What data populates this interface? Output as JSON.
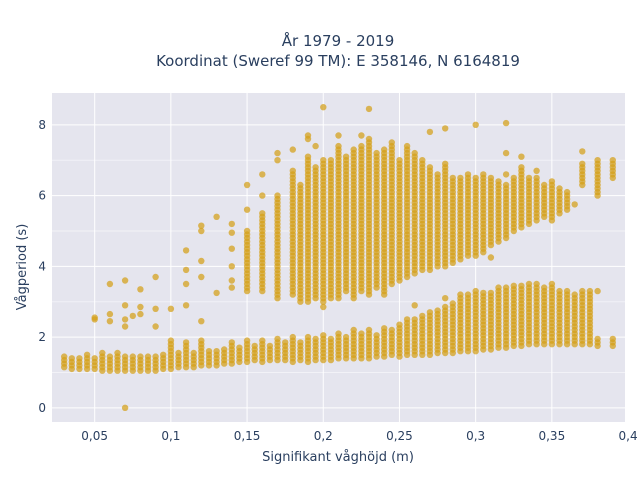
{
  "chart_data": {
    "type": "scatter",
    "title": "År 1979 - 2019",
    "subtitle": "Koordinat (Sweref 99 TM): E 358146, N 6164819",
    "xlabel": "Signifikant våghöjd (m)",
    "ylabel": "Vågperiod (s)",
    "xlim": [
      0.022,
      0.398
    ],
    "ylim": [
      -0.4,
      8.9
    ],
    "x_ticks": [
      0.05,
      0.1,
      0.15,
      0.2,
      0.25,
      0.3,
      0.35,
      0.4
    ],
    "x_tick_labels": [
      "0,05",
      "0,1",
      "0,15",
      "0,2",
      "0,25",
      "0,3",
      "0,35",
      "0,4"
    ],
    "y_ticks": [
      0,
      2,
      4,
      6,
      8
    ],
    "y_tick_labels": [
      "0",
      "2",
      "4",
      "6",
      "8"
    ],
    "grid": true,
    "legend": "none",
    "marker_color": "#D4A017",
    "background_color": "#E5E5EE",
    "columns": [
      {
        "x": 0.03,
        "low_band": [
          1.15,
          1.5
        ],
        "high_band": null,
        "outliers": []
      },
      {
        "x": 0.035,
        "low_band": [
          1.1,
          1.45
        ],
        "high_band": null,
        "outliers": []
      },
      {
        "x": 0.04,
        "low_band": [
          1.1,
          1.45
        ],
        "high_band": null,
        "outliers": []
      },
      {
        "x": 0.045,
        "low_band": [
          1.1,
          1.5
        ],
        "high_band": null,
        "outliers": []
      },
      {
        "x": 0.05,
        "low_band": [
          1.1,
          1.45
        ],
        "high_band": null,
        "outliers": [
          2.5,
          2.55
        ]
      },
      {
        "x": 0.055,
        "low_band": [
          1.05,
          1.55
        ],
        "high_band": null,
        "outliers": []
      },
      {
        "x": 0.06,
        "low_band": [
          1.05,
          1.5
        ],
        "high_band": null,
        "outliers": [
          3.5,
          2.65,
          2.45
        ]
      },
      {
        "x": 0.065,
        "low_band": [
          1.05,
          1.55
        ],
        "high_band": null,
        "outliers": []
      },
      {
        "x": 0.07,
        "low_band": [
          1.05,
          1.5
        ],
        "high_band": null,
        "outliers": [
          0.0,
          2.3,
          2.5,
          2.9,
          3.6
        ]
      },
      {
        "x": 0.075,
        "low_band": [
          1.05,
          1.5
        ],
        "high_band": null,
        "outliers": [
          2.6
        ]
      },
      {
        "x": 0.08,
        "low_band": [
          1.05,
          1.5
        ],
        "high_band": null,
        "outliers": [
          2.65,
          2.85,
          3.35
        ]
      },
      {
        "x": 0.085,
        "low_band": [
          1.05,
          1.5
        ],
        "high_band": null,
        "outliers": []
      },
      {
        "x": 0.09,
        "low_band": [
          1.05,
          1.5
        ],
        "high_band": null,
        "outliers": [
          2.3,
          2.8,
          3.7
        ]
      },
      {
        "x": 0.095,
        "low_band": [
          1.1,
          1.55
        ],
        "high_band": null,
        "outliers": []
      },
      {
        "x": 0.1,
        "low_band": [
          1.1,
          1.9
        ],
        "high_band": null,
        "outliers": [
          2.8
        ]
      },
      {
        "x": 0.105,
        "low_band": [
          1.15,
          1.55
        ],
        "high_band": null,
        "outliers": []
      },
      {
        "x": 0.11,
        "low_band": [
          1.15,
          1.9
        ],
        "high_band": null,
        "outliers": [
          2.9,
          3.5,
          3.9,
          4.45
        ]
      },
      {
        "x": 0.115,
        "low_band": [
          1.15,
          1.6
        ],
        "high_band": null,
        "outliers": []
      },
      {
        "x": 0.12,
        "low_band": [
          1.2,
          1.9
        ],
        "high_band": null,
        "outliers": [
          2.45,
          3.7,
          4.15,
          5.0,
          5.15
        ]
      },
      {
        "x": 0.125,
        "low_band": [
          1.2,
          1.6
        ],
        "high_band": null,
        "outliers": []
      },
      {
        "x": 0.13,
        "low_band": [
          1.2,
          1.65
        ],
        "high_band": null,
        "outliers": [
          3.25,
          5.4
        ]
      },
      {
        "x": 0.135,
        "low_band": [
          1.25,
          1.65
        ],
        "high_band": null,
        "outliers": []
      },
      {
        "x": 0.14,
        "low_band": [
          1.25,
          1.9
        ],
        "high_band": null,
        "outliers": [
          3.4,
          3.6,
          4.0,
          4.5,
          4.95,
          5.2
        ]
      },
      {
        "x": 0.145,
        "low_band": [
          1.3,
          1.7
        ],
        "high_band": null,
        "outliers": []
      },
      {
        "x": 0.15,
        "low_band": [
          1.3,
          1.95
        ],
        "high_band": [
          3.3,
          5.0
        ],
        "outliers": [
          5.6,
          6.3
        ]
      },
      {
        "x": 0.155,
        "low_band": [
          1.35,
          1.75
        ],
        "high_band": null,
        "outliers": []
      },
      {
        "x": 0.16,
        "low_band": [
          1.3,
          1.95
        ],
        "high_band": [
          3.3,
          5.5
        ],
        "outliers": [
          6.0,
          6.6
        ]
      },
      {
        "x": 0.165,
        "low_band": [
          1.35,
          1.8
        ],
        "high_band": null,
        "outliers": []
      },
      {
        "x": 0.17,
        "low_band": [
          1.35,
          2.0
        ],
        "high_band": [
          3.1,
          6.0
        ],
        "outliers": [
          7.0,
          7.2
        ]
      },
      {
        "x": 0.175,
        "low_band": [
          1.35,
          1.85
        ],
        "high_band": null,
        "outliers": []
      },
      {
        "x": 0.18,
        "low_band": [
          1.3,
          2.0
        ],
        "high_band": [
          3.2,
          6.7
        ],
        "outliers": [
          7.3
        ]
      },
      {
        "x": 0.185,
        "low_band": [
          1.35,
          1.9
        ],
        "high_band": [
          3.0,
          6.3
        ],
        "outliers": []
      },
      {
        "x": 0.19,
        "low_band": [
          1.3,
          2.0
        ],
        "high_band": [
          3.0,
          7.1
        ],
        "outliers": [
          7.6,
          7.7
        ]
      },
      {
        "x": 0.195,
        "low_band": [
          1.35,
          1.95
        ],
        "high_band": [
          3.1,
          6.8
        ],
        "outliers": [
          7.4
        ]
      },
      {
        "x": 0.2,
        "low_band": [
          1.35,
          2.1
        ],
        "high_band": [
          3.0,
          7.0
        ],
        "outliers": [
          2.85,
          8.5
        ]
      },
      {
        "x": 0.205,
        "low_band": [
          1.35,
          2.0
        ],
        "high_band": [
          3.1,
          7.0
        ],
        "outliers": []
      },
      {
        "x": 0.21,
        "low_band": [
          1.4,
          2.1
        ],
        "high_band": [
          3.1,
          7.4
        ],
        "outliers": [
          7.7
        ]
      },
      {
        "x": 0.215,
        "low_band": [
          1.4,
          2.0
        ],
        "high_band": [
          3.3,
          7.1
        ],
        "outliers": []
      },
      {
        "x": 0.22,
        "low_band": [
          1.4,
          2.2
        ],
        "high_band": [
          3.1,
          7.3
        ],
        "outliers": []
      },
      {
        "x": 0.225,
        "low_band": [
          1.4,
          2.1
        ],
        "high_band": [
          3.3,
          7.4
        ],
        "outliers": [
          7.7
        ]
      },
      {
        "x": 0.23,
        "low_band": [
          1.4,
          2.25
        ],
        "high_band": [
          3.2,
          7.6
        ],
        "outliers": [
          8.45
        ]
      },
      {
        "x": 0.235,
        "low_band": [
          1.45,
          2.1
        ],
        "high_band": [
          3.4,
          7.2
        ],
        "outliers": []
      },
      {
        "x": 0.24,
        "low_band": [
          1.45,
          2.3
        ],
        "high_band": [
          3.2,
          7.3
        ],
        "outliers": []
      },
      {
        "x": 0.245,
        "low_band": [
          1.5,
          2.2
        ],
        "high_band": [
          3.5,
          7.5
        ],
        "outliers": []
      },
      {
        "x": 0.25,
        "low_band": [
          1.45,
          2.4
        ],
        "high_band": [
          3.6,
          7.0
        ],
        "outliers": []
      },
      {
        "x": 0.255,
        "low_band": [
          1.5,
          2.5
        ],
        "high_band": [
          3.7,
          7.4
        ],
        "outliers": []
      },
      {
        "x": 0.26,
        "low_band": [
          1.5,
          2.5
        ],
        "high_band": [
          3.8,
          7.2
        ],
        "outliers": [
          2.9
        ]
      },
      {
        "x": 0.265,
        "low_band": [
          1.5,
          2.6
        ],
        "high_band": [
          3.9,
          7.0
        ],
        "outliers": []
      },
      {
        "x": 0.27,
        "low_band": [
          1.5,
          2.7
        ],
        "high_band": [
          3.9,
          6.8
        ],
        "outliers": [
          7.8
        ]
      },
      {
        "x": 0.275,
        "low_band": [
          1.55,
          2.8
        ],
        "high_band": [
          4.0,
          6.6
        ],
        "outliers": []
      },
      {
        "x": 0.28,
        "low_band": [
          1.55,
          2.9
        ],
        "high_band": [
          4.0,
          6.9
        ],
        "outliers": [
          3.1,
          7.9
        ]
      },
      {
        "x": 0.285,
        "low_band": [
          1.55,
          3.0
        ],
        "high_band": [
          4.1,
          6.5
        ],
        "outliers": []
      },
      {
        "x": 0.29,
        "low_band": [
          1.6,
          3.1
        ],
        "high_band": [
          4.2,
          6.5
        ],
        "outliers": [
          3.2
        ]
      },
      {
        "x": 0.295,
        "low_band": [
          1.6,
          3.2
        ],
        "high_band": [
          4.3,
          6.6
        ],
        "outliers": []
      },
      {
        "x": 0.3,
        "low_band": [
          1.6,
          3.3
        ],
        "high_band": [
          4.3,
          6.5
        ],
        "outliers": [
          8.0
        ]
      },
      {
        "x": 0.305,
        "low_band": [
          1.65,
          3.3
        ],
        "high_band": [
          4.4,
          6.6
        ],
        "outliers": []
      },
      {
        "x": 0.31,
        "low_band": [
          1.65,
          3.3
        ],
        "high_band": [
          4.6,
          6.5
        ],
        "outliers": [
          4.25
        ]
      },
      {
        "x": 0.315,
        "low_band": [
          1.7,
          3.4
        ],
        "high_band": [
          4.7,
          6.4
        ],
        "outliers": []
      },
      {
        "x": 0.32,
        "low_band": [
          1.7,
          3.4
        ],
        "high_band": [
          4.8,
          6.3
        ],
        "outliers": [
          6.6,
          7.2,
          8.05
        ]
      },
      {
        "x": 0.325,
        "low_band": [
          1.75,
          3.5
        ],
        "high_band": [
          5.0,
          6.5
        ],
        "outliers": []
      },
      {
        "x": 0.33,
        "low_band": [
          1.75,
          3.5
        ],
        "high_band": [
          5.1,
          6.8
        ],
        "outliers": [
          7.1
        ]
      },
      {
        "x": 0.335,
        "low_band": [
          1.8,
          3.5
        ],
        "high_band": [
          5.2,
          6.5
        ],
        "outliers": []
      },
      {
        "x": 0.34,
        "low_band": [
          1.8,
          3.5
        ],
        "high_band": [
          5.3,
          6.5
        ],
        "outliers": [
          6.7
        ]
      },
      {
        "x": 0.345,
        "low_band": [
          1.8,
          3.4
        ],
        "high_band": [
          5.4,
          6.3
        ],
        "outliers": []
      },
      {
        "x": 0.35,
        "low_band": [
          1.8,
          3.5
        ],
        "high_band": [
          5.3,
          6.4
        ],
        "outliers": []
      },
      {
        "x": 0.355,
        "low_band": [
          1.8,
          3.3
        ],
        "high_band": [
          5.5,
          6.2
        ],
        "outliers": []
      },
      {
        "x": 0.36,
        "low_band": [
          1.8,
          3.3
        ],
        "high_band": [
          5.6,
          6.1
        ],
        "outliers": []
      },
      {
        "x": 0.365,
        "low_band": [
          1.8,
          3.2
        ],
        "high_band": null,
        "outliers": [
          5.75
        ]
      },
      {
        "x": 0.37,
        "low_band": [
          1.8,
          3.3
        ],
        "high_band": [
          6.3,
          6.9
        ],
        "outliers": [
          7.25
        ]
      },
      {
        "x": 0.375,
        "low_band": [
          1.8,
          3.3
        ],
        "high_band": null,
        "outliers": []
      },
      {
        "x": 0.38,
        "low_band": [
          1.75,
          2.0
        ],
        "high_band": [
          6.0,
          7.0
        ],
        "outliers": [
          3.3
        ]
      },
      {
        "x": 0.39,
        "low_band": [
          1.75,
          2.0
        ],
        "high_band": [
          6.5,
          7.0
        ],
        "outliers": []
      }
    ]
  }
}
